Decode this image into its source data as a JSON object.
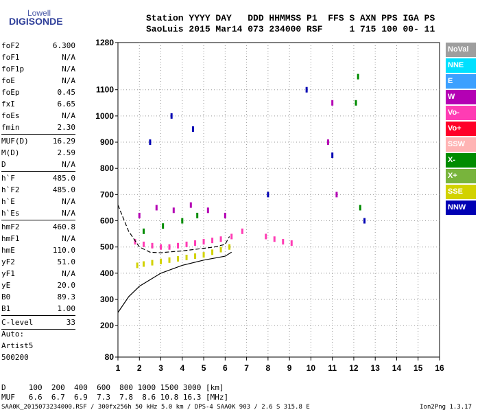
{
  "logo": {
    "top": "Lowell",
    "main": "DIGISONDE"
  },
  "header": {
    "line1": "Station YYYY DAY   DDD HHMMSS P1  FFS S AXN PPS IGA PS",
    "line2": "SaoLuis 2015 Mar14 073 234000 RSF     1 715 100 00- 11"
  },
  "params": [
    {
      "k": "foF2",
      "v": "6.300"
    },
    {
      "k": "foF1",
      "v": "N/A"
    },
    {
      "k": "foF1p",
      "v": "N/A"
    },
    {
      "k": "foE",
      "v": "N/A"
    },
    {
      "k": "foEp",
      "v": "0.45"
    },
    {
      "k": "fxI",
      "v": "6.65"
    },
    {
      "k": "foEs",
      "v": "N/A"
    },
    {
      "k": "fmin",
      "v": "2.30"
    },
    {
      "sep": true
    },
    {
      "k": "MUF(D)",
      "v": "16.29"
    },
    {
      "k": "M(D)",
      "v": "2.59"
    },
    {
      "k": "D",
      "v": "N/A"
    },
    {
      "sep": true
    },
    {
      "k": "h`F",
      "v": "485.0"
    },
    {
      "k": "h`F2",
      "v": "485.0"
    },
    {
      "k": "h`E",
      "v": "N/A"
    },
    {
      "k": "h`Es",
      "v": "N/A"
    },
    {
      "sep": true
    },
    {
      "k": "hmF2",
      "v": "460.8"
    },
    {
      "k": "hmF1",
      "v": "N/A"
    },
    {
      "k": "hmE",
      "v": "110.0"
    },
    {
      "k": "yF2",
      "v": "51.0"
    },
    {
      "k": "yF1",
      "v": "N/A"
    },
    {
      "k": "yE",
      "v": "20.0"
    },
    {
      "k": "B0",
      "v": "89.3"
    },
    {
      "k": "B1",
      "v": "1.00"
    },
    {
      "sep": true
    },
    {
      "k": "C-level",
      "v": "33"
    },
    {
      "sep": true
    }
  ],
  "auto": {
    "line1": "Auto:",
    "line2": "Artist5",
    "line3": "500200"
  },
  "muf_table": {
    "row1": "D     100  200  400  600  800 1000 1500 3000 [km]",
    "row2": "MUF   6.6  6.7  6.9  7.3  7.8  8.6 10.8 16.3 [MHz]"
  },
  "footer": {
    "left": "SAA0K_2015073234000.RSF / 300fx256h 50 kHz 5.0 km / DPS-4 SAA0K 903 / 2.6 S 315.8 E",
    "right": "Ion2Png 1.3.17"
  },
  "legend": [
    {
      "label": "NoVal",
      "color": "#9e9e9e"
    },
    {
      "label": "NNE",
      "color": "#00e0ff"
    },
    {
      "label": "E",
      "color": "#3ca0ff"
    },
    {
      "label": "W",
      "color": "#b400b4"
    },
    {
      "label": "Vo-",
      "color": "#ff3cb4"
    },
    {
      "label": "Vo+",
      "color": "#ff0028"
    },
    {
      "label": "SSW",
      "color": "#ffb4b4"
    },
    {
      "label": "X-",
      "color": "#008c00"
    },
    {
      "label": "X+",
      "color": "#78b43c"
    },
    {
      "label": "SSE",
      "color": "#d2d200"
    },
    {
      "label": "NNW",
      "color": "#0000b4"
    }
  ],
  "chart_data": {
    "type": "scatter",
    "x_ticks": [
      1,
      2,
      3,
      4,
      5,
      6,
      7,
      8,
      9,
      10,
      11,
      12,
      13,
      14,
      15,
      16
    ],
    "y_ticks": [
      80,
      200,
      300,
      400,
      500,
      600,
      700,
      800,
      900,
      1000,
      1100,
      1280
    ],
    "xlim": [
      1,
      16
    ],
    "ylim": [
      80,
      1280
    ],
    "x_unit": "MHz",
    "y_unit": "km",
    "grid": "dotted",
    "series": [
      {
        "name": "SSE",
        "x": [
          1.9,
          2.2,
          2.6,
          3.0,
          3.4,
          3.8,
          4.2,
          4.6,
          5.0,
          5.4,
          5.8,
          6.2
        ],
        "y": [
          430,
          435,
          440,
          445,
          450,
          455,
          460,
          465,
          470,
          480,
          490,
          500
        ]
      },
      {
        "name": "Vo-",
        "x": [
          1.8,
          2.2,
          2.6,
          3.0,
          3.4,
          3.8,
          4.2,
          4.6,
          5.0,
          5.4,
          5.8,
          6.3,
          6.8,
          7.9,
          8.3,
          8.7,
          9.1
        ],
        "y": [
          520,
          510,
          505,
          500,
          500,
          505,
          510,
          515,
          520,
          525,
          530,
          540,
          560,
          540,
          530,
          520,
          515
        ]
      },
      {
        "name": "W",
        "x": [
          2.0,
          2.8,
          3.6,
          4.4,
          5.2,
          6.0,
          10.8,
          11.0,
          11.2
        ],
        "y": [
          620,
          650,
          640,
          660,
          640,
          620,
          900,
          1050,
          700
        ]
      },
      {
        "name": "X-",
        "x": [
          2.2,
          3.1,
          4.0,
          4.7,
          12.1,
          12.2,
          12.3
        ],
        "y": [
          560,
          580,
          600,
          620,
          1050,
          1150,
          650
        ]
      },
      {
        "name": "NNW",
        "x": [
          2.5,
          3.5,
          4.5,
          8.0,
          9.8,
          11.0,
          12.5
        ],
        "y": [
          900,
          1000,
          950,
          700,
          1100,
          850,
          600
        ]
      },
      {
        "name": "Trace O",
        "x": [
          1,
          1.5,
          2,
          2.5,
          3,
          3.5,
          4,
          4.5,
          5,
          5.5,
          6,
          6.2
        ],
        "y": [
          660,
          560,
          500,
          480,
          478,
          482,
          485,
          490,
          495,
          500,
          510,
          540
        ]
      },
      {
        "name": "Profile",
        "x": [
          1,
          1.5,
          2,
          3,
          4,
          5,
          6,
          6.3
        ],
        "y": [
          250,
          310,
          350,
          400,
          430,
          450,
          465,
          480
        ]
      }
    ]
  }
}
